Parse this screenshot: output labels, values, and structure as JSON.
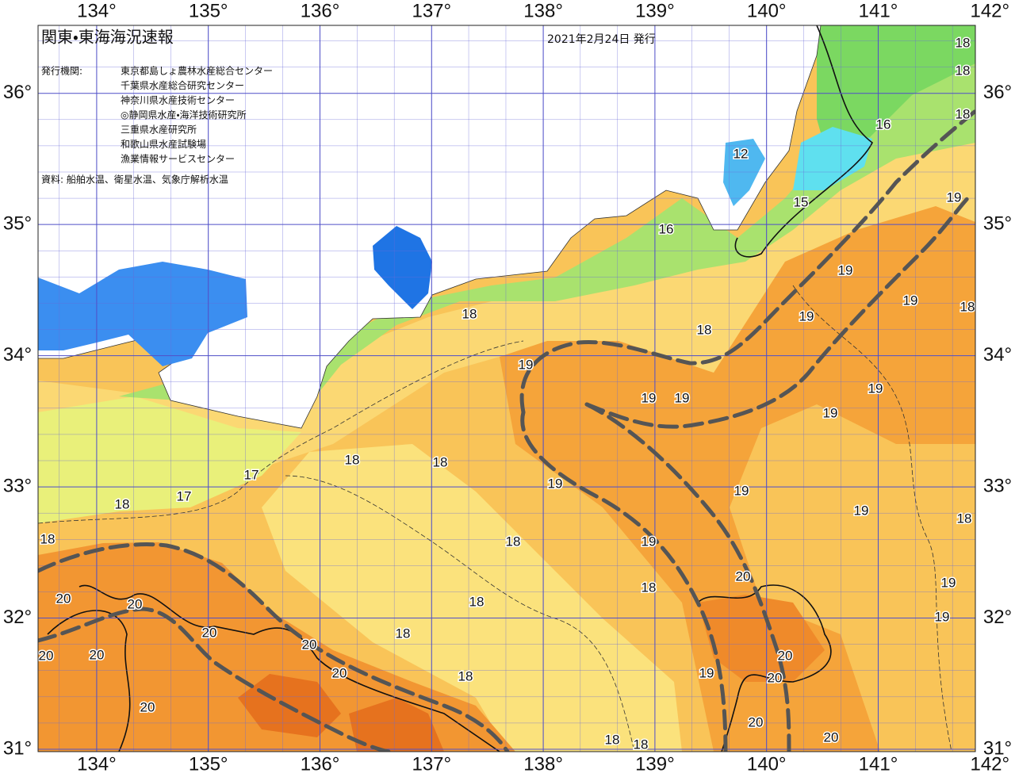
{
  "header": {
    "title": "関東・東海海況速報",
    "date": "2021年2月24日 発行"
  },
  "issuers": {
    "label": "発行機関:",
    "names": [
      "東京都島しょ農林水産総合センター",
      "千葉県水産総合研究センター",
      "神奈川県水産技術センター",
      "◎静岡県水産・海洋技術研究所",
      "三重県水産研究所",
      "和歌山県水産試験場",
      "漁業情報サービスセンター"
    ]
  },
  "source": "資料: 船舶水温、衛星水温、気象庁解析水温",
  "map": {
    "xlim": [
      133.475,
      141.87
    ],
    "ylim": [
      30.982,
      36.518
    ],
    "xticks": [
      {
        "value": 134,
        "label": "134°"
      },
      {
        "value": 135,
        "label": "135°"
      },
      {
        "value": 136,
        "label": "136°"
      },
      {
        "value": 137,
        "label": "137°"
      },
      {
        "value": 138,
        "label": "138°"
      },
      {
        "value": 139,
        "label": "139°"
      },
      {
        "value": 140,
        "label": "140°"
      },
      {
        "value": 141,
        "label": "141°"
      },
      {
        "value": 142,
        "label": "142°"
      }
    ],
    "yticks": [
      {
        "value": 31,
        "label": "31°"
      },
      {
        "value": 32,
        "label": "32°"
      },
      {
        "value": 33,
        "label": "33°"
      },
      {
        "value": 34,
        "label": "34°"
      },
      {
        "value": 35,
        "label": "35°"
      },
      {
        "value": 36,
        "label": "36°"
      }
    ],
    "contour_labels": [
      18,
      18,
      18,
      16,
      12,
      15,
      16,
      19,
      19,
      19,
      18,
      19,
      18,
      18,
      19,
      19,
      19,
      19,
      19,
      18,
      18,
      17,
      19,
      19,
      17,
      18,
      19,
      18,
      18,
      18,
      19,
      20,
      19,
      18,
      20,
      20,
      18,
      19,
      20,
      18,
      20,
      20,
      20,
      20,
      20,
      18,
      19,
      20,
      20,
      20,
      20,
      18,
      18
    ]
  }
}
